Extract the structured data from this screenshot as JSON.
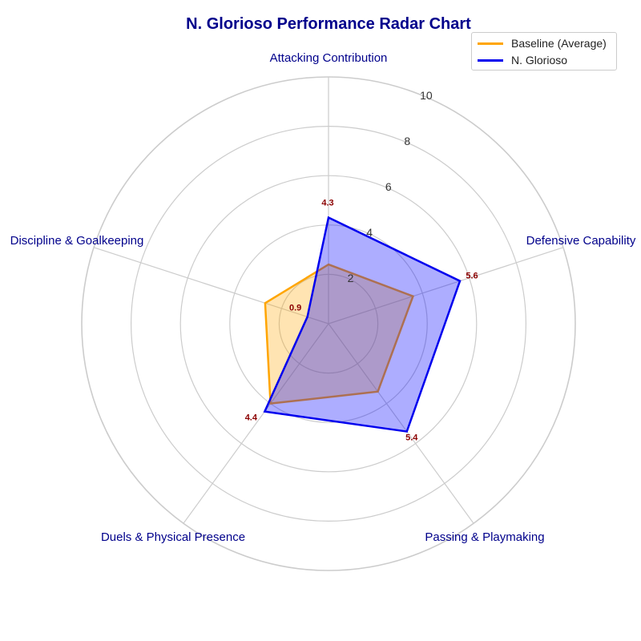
{
  "chart_data": {
    "type": "radar",
    "title": "N. Glorioso Performance Radar Chart",
    "categories": [
      "Attacking Contribution",
      "Defensive Capability",
      "Passing & Playmaking",
      "Duels & Physical Presence",
      "Discipline & Goalkeeping"
    ],
    "rlim": [
      0,
      10
    ],
    "rticks": [
      "2",
      "4",
      "6",
      "8",
      "10"
    ],
    "grid": true,
    "legend_position": "top-right",
    "series": [
      {
        "name": "Baseline (Average)",
        "values": [
          2.4,
          3.6,
          3.4,
          4.0,
          2.7
        ],
        "color": "#ffa500",
        "fill": "#ffa500"
      },
      {
        "name": "N. Glorioso",
        "values": [
          4.3,
          5.6,
          5.4,
          4.4,
          0.9
        ],
        "color": "#0000ee",
        "fill": "#0000ff"
      }
    ],
    "data_labels": [
      "4.3",
      "5.6",
      "5.4",
      "4.4",
      "0.9"
    ],
    "data_label_color": "#8b0000"
  }
}
